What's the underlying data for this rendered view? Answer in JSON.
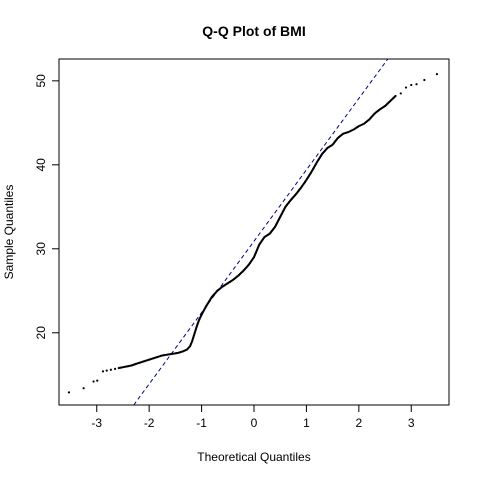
{
  "chart_data": {
    "type": "scatter",
    "title": "Q-Q Plot of BMI",
    "xlabel": "Theoretical Quantiles",
    "ylabel": "Sample Quantiles",
    "xlim": [
      -3.72,
      3.72
    ],
    "ylim": [
      11.4,
      52.6
    ],
    "xticks": [
      -3,
      -2,
      -1,
      0,
      1,
      2,
      3
    ],
    "yticks": [
      20,
      30,
      40,
      50
    ],
    "grid": false,
    "legend": "none",
    "point_color": "#000000",
    "line_color": "#00008B",
    "reference_line": {
      "intercept": 30.9,
      "slope": 8.5
    },
    "points": [
      [
        -3.53,
        12.9
      ],
      [
        -3.25,
        13.4
      ],
      [
        -3.06,
        14.2
      ],
      [
        -2.99,
        14.3
      ],
      [
        -2.88,
        15.4
      ],
      [
        -2.81,
        15.5
      ],
      [
        -2.73,
        15.6
      ],
      [
        -2.65,
        15.7
      ],
      [
        -2.58,
        15.8
      ],
      [
        -2.5,
        15.9
      ],
      [
        -2.42,
        16.0
      ],
      [
        -2.34,
        16.1
      ],
      [
        -2.25,
        16.3
      ],
      [
        -2.15,
        16.5
      ],
      [
        -2.05,
        16.7
      ],
      [
        -1.95,
        16.9
      ],
      [
        -1.85,
        17.1
      ],
      [
        -1.75,
        17.3
      ],
      [
        -1.65,
        17.4
      ],
      [
        -1.55,
        17.5
      ],
      [
        -1.45,
        17.6
      ],
      [
        -1.35,
        17.8
      ],
      [
        -1.28,
        18.0
      ],
      [
        -1.22,
        18.4
      ],
      [
        -1.18,
        19.0
      ],
      [
        -1.14,
        19.8
      ],
      [
        -1.1,
        20.6
      ],
      [
        -1.05,
        21.5
      ],
      [
        -0.98,
        22.4
      ],
      [
        -0.9,
        23.3
      ],
      [
        -0.8,
        24.3
      ],
      [
        -0.7,
        25.0
      ],
      [
        -0.6,
        25.5
      ],
      [
        -0.5,
        25.9
      ],
      [
        -0.4,
        26.3
      ],
      [
        -0.3,
        26.8
      ],
      [
        -0.2,
        27.4
      ],
      [
        -0.1,
        28.1
      ],
      [
        0.0,
        29.0
      ],
      [
        0.1,
        30.5
      ],
      [
        0.2,
        31.4
      ],
      [
        0.3,
        31.8
      ],
      [
        0.4,
        32.6
      ],
      [
        0.5,
        33.8
      ],
      [
        0.6,
        35.0
      ],
      [
        0.7,
        35.8
      ],
      [
        0.8,
        36.5
      ],
      [
        0.9,
        37.3
      ],
      [
        1.0,
        38.2
      ],
      [
        1.1,
        39.2
      ],
      [
        1.2,
        40.3
      ],
      [
        1.3,
        41.3
      ],
      [
        1.4,
        42.0
      ],
      [
        1.5,
        42.4
      ],
      [
        1.6,
        43.2
      ],
      [
        1.7,
        43.7
      ],
      [
        1.8,
        43.9
      ],
      [
        1.9,
        44.2
      ],
      [
        2.0,
        44.6
      ],
      [
        2.1,
        44.9
      ],
      [
        2.2,
        45.4
      ],
      [
        2.3,
        46.1
      ],
      [
        2.4,
        46.6
      ],
      [
        2.5,
        47.0
      ],
      [
        2.6,
        47.6
      ],
      [
        2.7,
        48.2
      ],
      [
        2.8,
        48.5
      ],
      [
        2.9,
        49.2
      ],
      [
        3.0,
        49.5
      ],
      [
        3.1,
        49.6
      ],
      [
        3.25,
        50.1
      ],
      [
        3.49,
        50.8
      ]
    ]
  }
}
